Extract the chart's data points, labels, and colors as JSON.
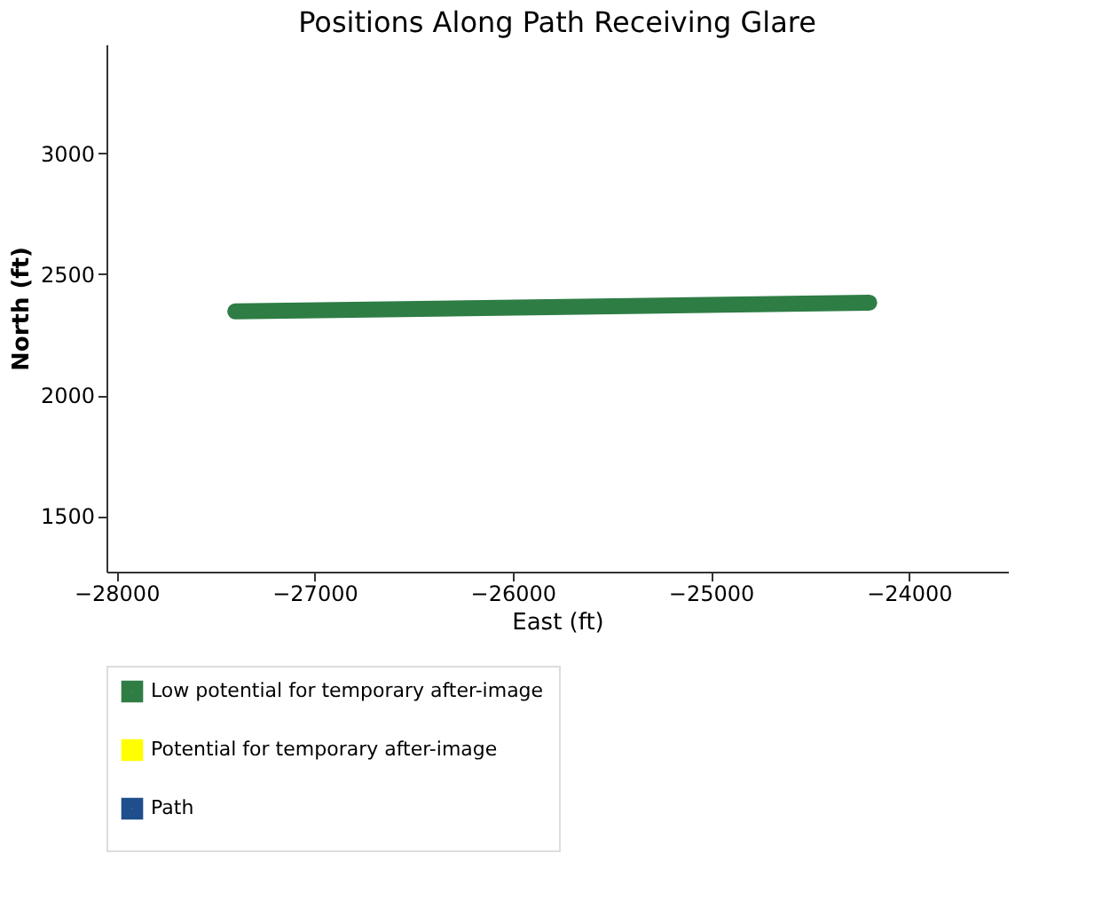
{
  "chart_data": {
    "type": "line",
    "title": "Positions Along Path Receiving Glare",
    "xlabel": "East (ft)",
    "ylabel": "North (ft)",
    "x": [
      -27400,
      -24200
    ],
    "series": [
      {
        "name": "Low potential for temporary after-image",
        "color": "#2e7d45",
        "values": [
          2346,
          2382
        ]
      },
      {
        "name": "Potential for temporary after-image",
        "color": "#ffff00",
        "values": [
          null,
          null
        ]
      },
      {
        "name": "Path",
        "color": "#1f4e8c",
        "values": [
          null,
          null
        ]
      }
    ],
    "xlim": [
      -28050,
      -23500
    ],
    "xticks": [
      -28000,
      -27000,
      -26000,
      -25000,
      -24000
    ],
    "ylim": [
      1270,
      3450
    ],
    "yticks": [
      1500,
      2000,
      2500,
      3000
    ],
    "grid": false,
    "legend": "bottom",
    "line_style": "solid",
    "marker": "none"
  }
}
